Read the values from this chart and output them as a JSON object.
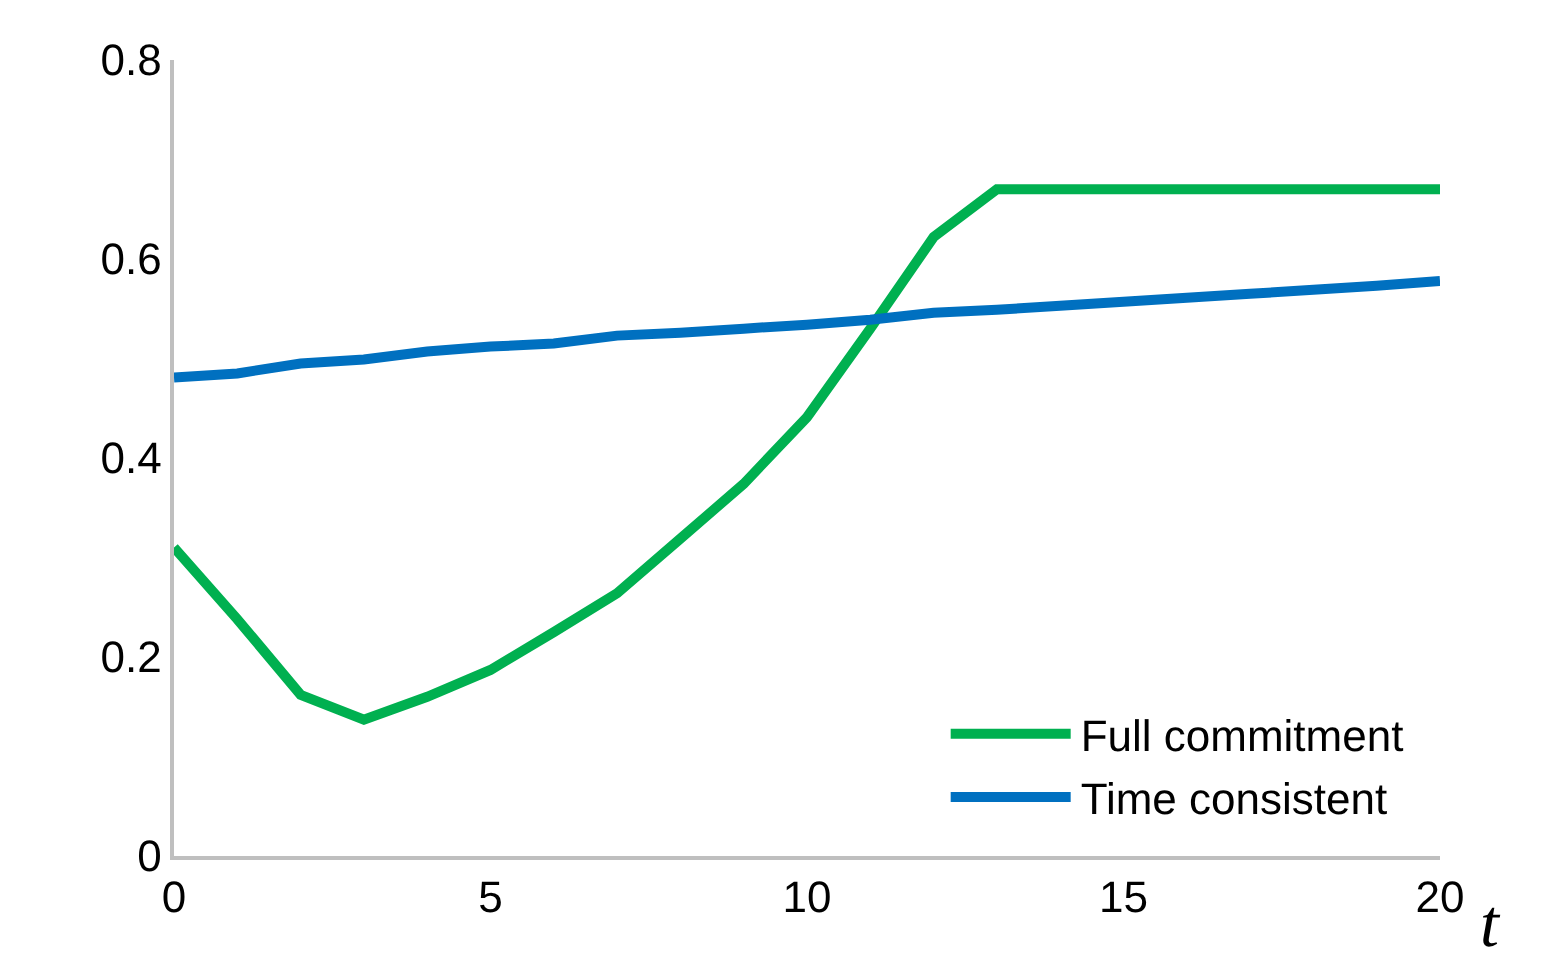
{
  "chart_data": {
    "type": "line",
    "xlabel": "t",
    "x": [
      0,
      1,
      2,
      3,
      4,
      5,
      6,
      7,
      8,
      9,
      10,
      11,
      12,
      13,
      14,
      15,
      16,
      17,
      18,
      19,
      20
    ],
    "series": [
      {
        "name": "Full commitment",
        "color": "#00b050",
        "values": [
          0.31,
          0.238,
          0.162,
          0.137,
          0.16,
          0.187,
          0.225,
          0.264,
          0.319,
          0.374,
          0.441,
          0.53,
          0.622,
          0.67,
          0.67,
          0.67,
          0.67,
          0.67,
          0.67,
          0.67,
          0.67
        ]
      },
      {
        "name": "Time consistent",
        "color": "#0070c0",
        "values": [
          0.481,
          0.485,
          0.495,
          0.499,
          0.507,
          0.512,
          0.515,
          0.523,
          0.526,
          0.53,
          0.534,
          0.539,
          0.546,
          0.549,
          0.553,
          0.557,
          0.561,
          0.565,
          0.569,
          0.573,
          0.578
        ]
      }
    ],
    "xlim": [
      0,
      20
    ],
    "xticks": [
      0,
      5,
      10,
      15,
      20
    ],
    "ylim": [
      0,
      0.8
    ],
    "yticks": [
      0,
      0.2,
      0.4,
      0.6,
      0.8
    ],
    "grid": false,
    "legend": "bottom right",
    "marker": "none",
    "line_style": "solid"
  }
}
